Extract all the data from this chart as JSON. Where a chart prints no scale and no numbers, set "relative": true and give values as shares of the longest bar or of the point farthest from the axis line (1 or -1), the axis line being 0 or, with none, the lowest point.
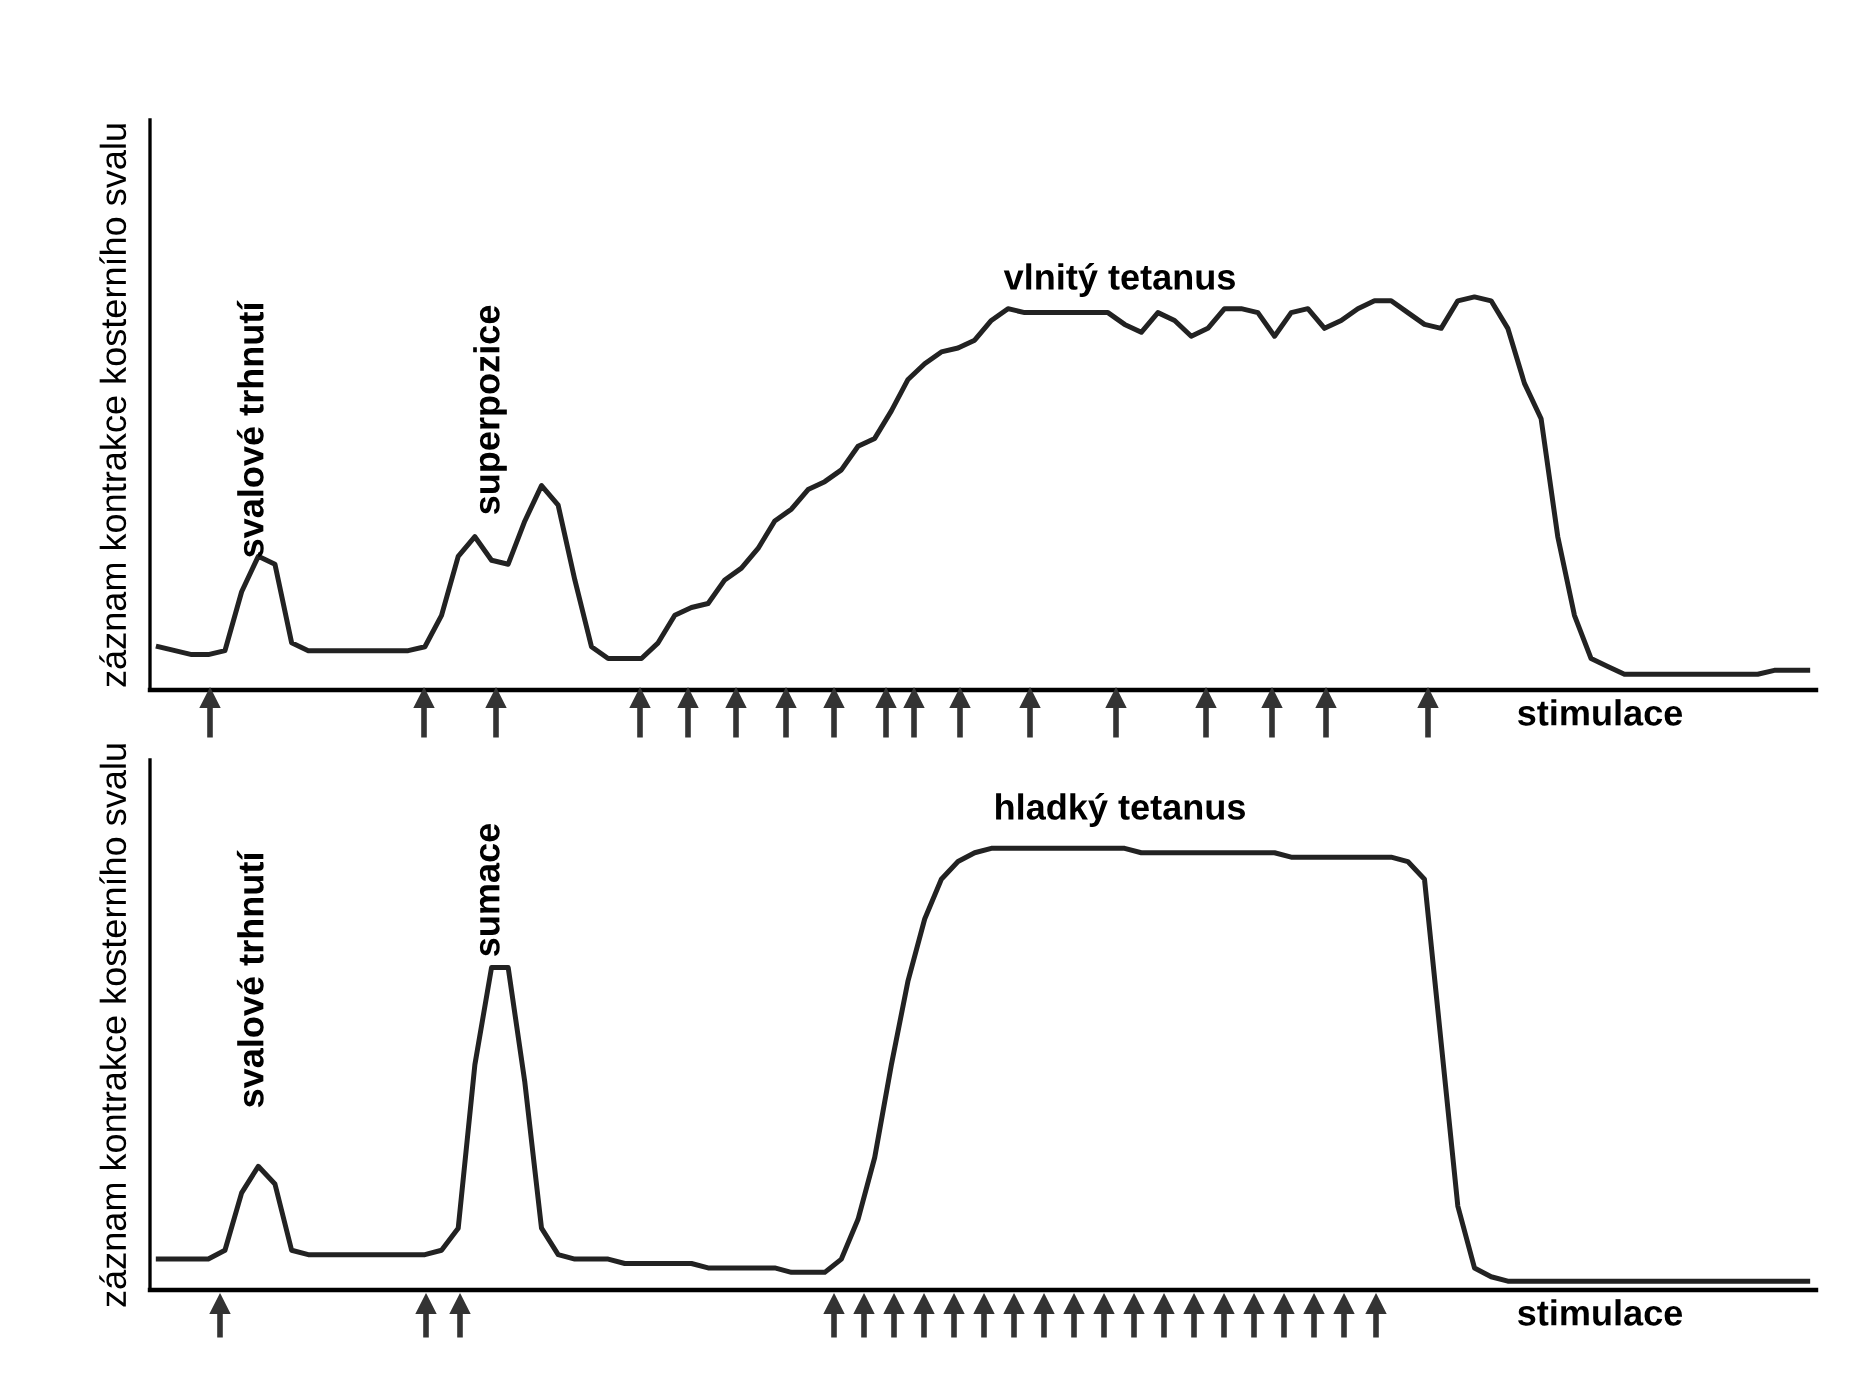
{
  "chart_data": [
    {
      "type": "line",
      "relative": true,
      "ylabel": "záznam kontrakce kosterního svalu",
      "xlabel": "stimulace",
      "annotations": [
        "svalové trhnutí",
        "superpozice",
        "vlnitý tetanus"
      ],
      "categories": [
        null,
        null,
        null,
        null,
        null,
        null,
        null,
        null,
        null,
        null,
        null,
        null,
        null,
        null,
        null,
        null,
        null,
        null,
        null,
        null,
        null,
        null,
        null,
        null,
        null,
        null,
        null,
        null,
        null,
        null,
        null,
        null,
        null,
        null,
        null,
        null,
        null,
        null,
        null,
        null,
        null,
        null,
        null,
        null,
        null,
        null,
        null,
        null,
        null,
        null,
        null,
        null,
        null,
        null,
        null,
        null,
        null,
        null,
        null,
        null,
        null,
        null,
        null,
        null,
        null,
        null,
        null,
        null,
        null,
        null,
        null,
        null,
        null,
        null,
        null,
        null,
        null,
        null,
        null,
        null,
        null,
        null,
        null,
        null,
        null,
        null,
        null,
        null,
        null,
        null,
        null,
        null,
        null,
        null,
        null,
        null,
        null,
        null,
        null,
        null
      ],
      "series": [
        {
          "color": "#222222",
          "values": [
            0.11,
            0.1,
            0.09,
            0.09,
            0.1,
            0.25,
            0.34,
            0.32,
            0.12,
            0.1,
            0.1,
            0.1,
            0.1,
            0.1,
            0.1,
            0.1,
            0.11,
            0.19,
            0.34,
            0.39,
            0.33,
            0.32,
            0.43,
            0.52,
            0.47,
            0.28,
            0.11,
            0.08,
            0.08,
            0.08,
            0.12,
            0.19,
            0.21,
            0.22,
            0.28,
            0.31,
            0.36,
            0.43,
            0.46,
            0.51,
            0.53,
            0.56,
            0.62,
            0.64,
            0.71,
            0.79,
            0.83,
            0.86,
            0.87,
            0.89,
            0.94,
            0.97,
            0.96,
            0.96,
            0.96,
            0.96,
            0.96,
            0.96,
            0.93,
            0.91,
            0.96,
            0.94,
            0.9,
            0.92,
            0.97,
            0.97,
            0.96,
            0.9,
            0.96,
            0.97,
            0.92,
            0.94,
            0.97,
            0.99,
            0.99,
            0.96,
            0.93,
            0.92,
            0.99,
            1.0,
            0.99,
            0.92,
            0.78,
            0.69,
            0.39,
            0.19,
            0.08,
            0.06,
            0.04,
            0.04,
            0.04,
            0.04,
            0.04,
            0.04,
            0.04,
            0.04,
            0.04,
            0.05,
            0.05,
            0.05
          ]
        }
      ]
    },
    {
      "type": "line",
      "relative": true,
      "ylabel": "záznam kontrakce kosterního svalu",
      "xlabel": "stimulace",
      "annotations": [
        "svalové trhnutí",
        "sumace",
        "hladký tetanus"
      ],
      "categories": [
        null,
        null,
        null,
        null,
        null,
        null,
        null,
        null,
        null,
        null,
        null,
        null,
        null,
        null,
        null,
        null,
        null,
        null,
        null,
        null,
        null,
        null,
        null,
        null,
        null,
        null,
        null,
        null,
        null,
        null,
        null,
        null,
        null,
        null,
        null,
        null,
        null,
        null,
        null,
        null,
        null,
        null,
        null,
        null,
        null,
        null,
        null,
        null,
        null,
        null,
        null,
        null,
        null,
        null,
        null,
        null,
        null,
        null,
        null,
        null,
        null,
        null,
        null,
        null,
        null,
        null,
        null,
        null,
        null,
        null,
        null,
        null,
        null,
        null,
        null,
        null,
        null,
        null,
        null,
        null,
        null,
        null,
        null,
        null,
        null,
        null,
        null,
        null,
        null,
        null,
        null,
        null,
        null,
        null,
        null,
        null,
        null,
        null,
        null,
        null
      ],
      "series": [
        {
          "color": "#222222",
          "values": [
            0.07,
            0.07,
            0.07,
            0.07,
            0.09,
            0.22,
            0.28,
            0.24,
            0.09,
            0.08,
            0.08,
            0.08,
            0.08,
            0.08,
            0.08,
            0.08,
            0.08,
            0.09,
            0.14,
            0.51,
            0.73,
            0.73,
            0.47,
            0.14,
            0.08,
            0.07,
            0.07,
            0.07,
            0.06,
            0.06,
            0.06,
            0.06,
            0.06,
            0.05,
            0.05,
            0.05,
            0.05,
            0.05,
            0.04,
            0.04,
            0.04,
            0.07,
            0.16,
            0.3,
            0.51,
            0.7,
            0.84,
            0.93,
            0.97,
            0.99,
            1.0,
            1.0,
            1.0,
            1.0,
            1.0,
            1.0,
            1.0,
            1.0,
            1.0,
            0.99,
            0.99,
            0.99,
            0.99,
            0.99,
            0.99,
            0.99,
            0.99,
            0.99,
            0.98,
            0.98,
            0.98,
            0.98,
            0.98,
            0.98,
            0.98,
            0.97,
            0.93,
            0.56,
            0.19,
            0.05,
            0.03,
            0.02,
            0.02,
            0.02,
            0.02,
            0.02,
            0.02,
            0.02,
            0.02,
            0.02,
            0.02,
            0.02,
            0.02,
            0.02,
            0.02,
            0.02,
            0.02,
            0.02,
            0.02,
            0.02
          ]
        }
      ]
    }
  ]
}
